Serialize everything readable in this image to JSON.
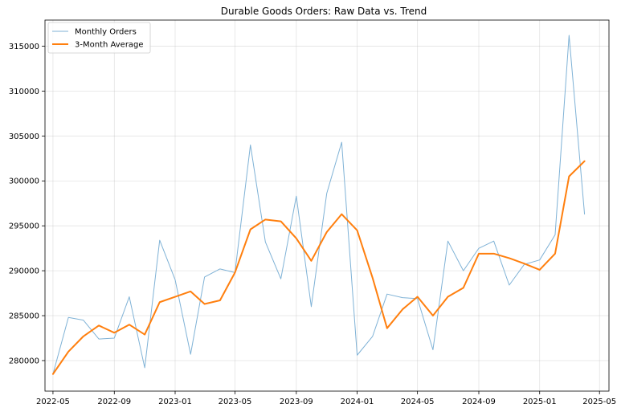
{
  "chart_data": {
    "type": "line",
    "title": "Durable Goods Orders: Raw Data vs. Trend",
    "xlabel": "",
    "ylabel": "",
    "x": [
      "2022-05",
      "2022-06",
      "2022-07",
      "2022-08",
      "2022-09",
      "2022-10",
      "2022-11",
      "2022-12",
      "2023-01",
      "2023-02",
      "2023-03",
      "2023-04",
      "2023-05",
      "2023-06",
      "2023-07",
      "2023-08",
      "2023-09",
      "2023-10",
      "2023-11",
      "2023-12",
      "2024-01",
      "2024-02",
      "2024-03",
      "2024-04",
      "2024-05",
      "2024-06",
      "2024-07",
      "2024-08",
      "2024-09",
      "2024-10",
      "2024-11",
      "2024-12",
      "2025-01",
      "2025-02",
      "2025-03",
      "2025-04"
    ],
    "series": [
      {
        "name": "Monthly Orders",
        "color": "#7fb2d6",
        "values": [
          278500,
          284800,
          284500,
          282400,
          282500,
          287100,
          279200,
          293400,
          289000,
          280700,
          289300,
          290200,
          289800,
          304000,
          293200,
          289100,
          298300,
          286000,
          298600,
          304300,
          280600,
          282700,
          287400,
          287000,
          286900,
          281200,
          293300,
          290000,
          292500,
          293300,
          288400,
          290700,
          291200,
          294000,
          316200,
          296300
        ]
      },
      {
        "name": "3-Month Average",
        "color": "#ff7f0e",
        "values": [
          278500,
          281000,
          282700,
          283900,
          283100,
          284000,
          282900,
          286500,
          287100,
          287700,
          286300,
          286700,
          289800,
          294600,
          295700,
          295500,
          293600,
          291100,
          294300,
          296300,
          294500,
          289200,
          283600,
          285700,
          287100,
          285000,
          287100,
          288100,
          291900,
          291900,
          291400,
          290800,
          290100,
          291900,
          300500,
          302200
        ]
      }
    ],
    "xticks": [
      "2022-05",
      "2022-09",
      "2023-01",
      "2023-05",
      "2023-09",
      "2024-01",
      "2024-05",
      "2024-09",
      "2025-01",
      "2025-05"
    ],
    "yticks": [
      280000,
      285000,
      290000,
      295000,
      300000,
      305000,
      310000,
      315000
    ],
    "xlim": [
      "2022-04-15",
      "2025-05-20"
    ],
    "ylim": [
      276600,
      317900
    ],
    "grid": true,
    "legend_position": "top-left"
  }
}
